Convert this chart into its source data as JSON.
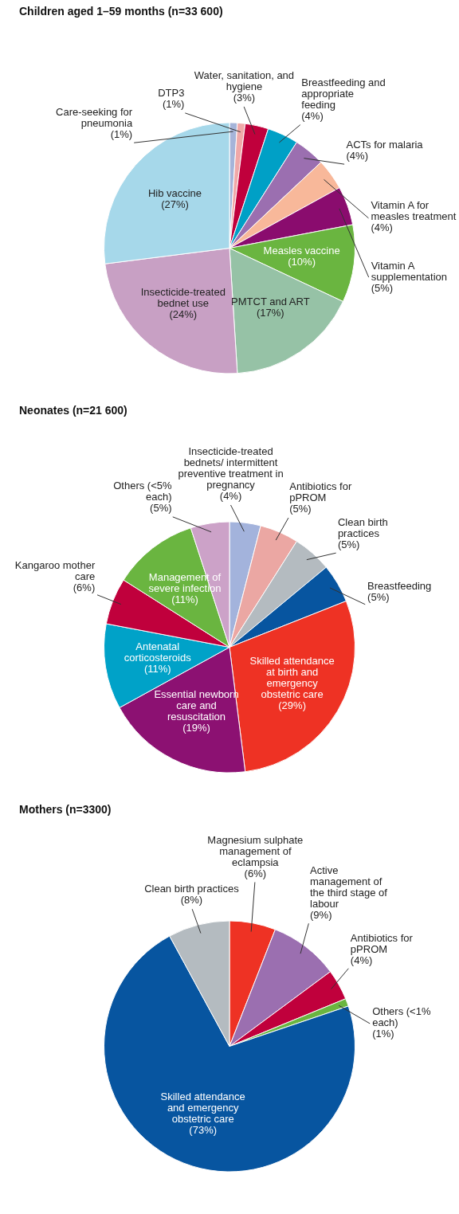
{
  "chart_data": [
    {
      "type": "pie",
      "title": "Children aged 1–59 months (n=33 600)",
      "categories": [
        "Care-seeking for pneumonia",
        "DTP3",
        "Water, sanitation, and hygiene",
        "Breastfeeding and appropriate feeding",
        "ACTs for malaria",
        "Vitamin A for measles treatment",
        "Vitamin A supplementation",
        "Measles vaccine",
        "PMTCT and ART",
        "Insecticide-treated bednet use",
        "Hib vaccine"
      ],
      "values": [
        1,
        1,
        3,
        4,
        4,
        4,
        5,
        10,
        17,
        24,
        27
      ],
      "value_labels": [
        "(1%)",
        "(1%)",
        "(3%)",
        "(4%)",
        "(4%)",
        "(4%)",
        "(5%)",
        "(10%)",
        "(17%)",
        "(24%)",
        "(27%)"
      ],
      "colors": [
        "#a5b4d9",
        "#f0a8a8",
        "#c0003c",
        "#00a0c6",
        "#9b6fb0",
        "#f8b89a",
        "#8a0c6e",
        "#6ab540",
        "#96c2a6",
        "#c8a0c4",
        "#a6d8ea"
      ]
    },
    {
      "type": "pie",
      "title": "Neonates (n=21 600)",
      "categories": [
        "Insecticide-treated bednets/ intermittent preventive treatment in pregnancy",
        "Antibiotics for pPROM",
        "Clean birth practices",
        "Breastfeeding",
        "Skilled attendance at birth and emergency obstetric care",
        "Essential newborn care and resuscitation",
        "Antenatal corticosteroids",
        "Kangaroo mother care",
        "Management of severe infection",
        "Others (<5% each)"
      ],
      "values": [
        4,
        5,
        5,
        5,
        29,
        19,
        11,
        6,
        11,
        5
      ],
      "value_labels": [
        "(4%)",
        "(5%)",
        "(5%)",
        "(5%)",
        "(29%)",
        "(19%)",
        "(11%)",
        "(6%)",
        "(11%)",
        "(5%)"
      ],
      "colors": [
        "#a3b3dc",
        "#eba7a3",
        "#b4bbc0",
        "#0755a0",
        "#ee3224",
        "#8c1172",
        "#00a2c8",
        "#c0003c",
        "#6ab540",
        "#cca2c8"
      ]
    },
    {
      "type": "pie",
      "title": "Mothers (n=3300)",
      "categories": [
        "Magnesium sulphate management of eclampsia",
        "Active management of the third stage of labour",
        "Antibiotics for pPROM",
        "Others (<1% each)",
        "Skilled attendance and emergency obstetric care",
        "Clean birth practices"
      ],
      "values": [
        6,
        9,
        4,
        1,
        73,
        8
      ],
      "value_labels": [
        "(6%)",
        "(9%)",
        "(4%)",
        "(1%)",
        "(73%)",
        "(8%)"
      ],
      "colors": [
        "#ee3224",
        "#9b6fb0",
        "#c0003c",
        "#6ab540",
        "#0755a0",
        "#b4bbc0"
      ]
    }
  ]
}
